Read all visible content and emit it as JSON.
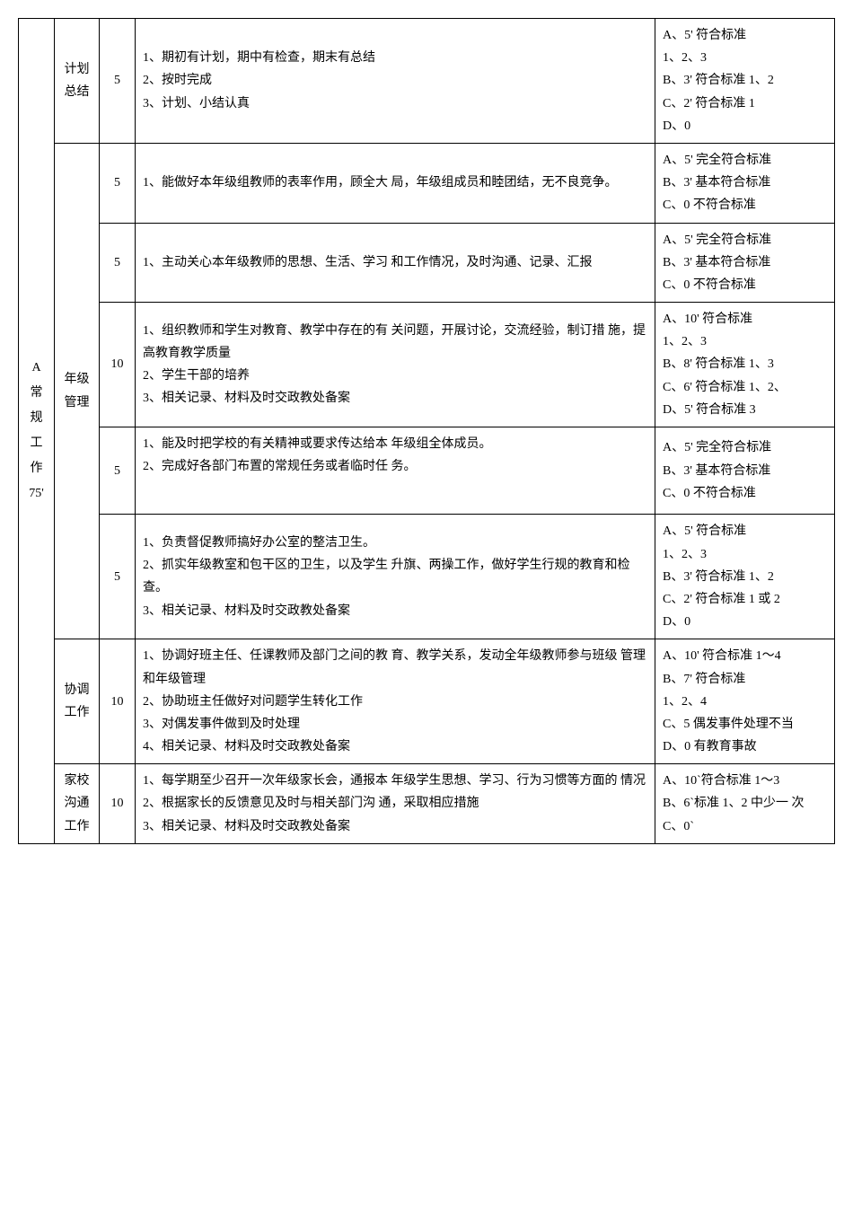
{
  "colors": {
    "border": "#000000",
    "background": "#ffffff",
    "text": "#000000"
  },
  "typography": {
    "font_family": "SimSun",
    "font_size": 14,
    "line_height": 1.8
  },
  "table": {
    "column_widths": {
      "category": 40,
      "subcategory": 50,
      "score": 40,
      "criteria": 200
    },
    "rows": [
      {
        "category": "A 常 规 工 作 75'",
        "sub": "计划 总结",
        "score": "5",
        "content": "1、期初有计划，期中有检查，期末有总结\n2、按时完成\n3、计划、小结认真",
        "criteria": "A、5' 符合标准\n1、2、3\nB、3' 符合标准 1、2\nC、2' 符合标准 1\nD、0"
      },
      {
        "sub": "年级 管理",
        "score": "5",
        "content": "1、能做好本年级组教师的表率作用，顾全大 局，年级组成员和睦团结，无不良竞争。",
        "criteria": "A、5' 完全符合标准\nB、3' 基本符合标准\nC、0 不符合标准"
      },
      {
        "score": "5",
        "content": "1、主动关心本年级教师的思想、生活、学习 和工作情况，及时沟通、记录、汇报",
        "criteria": "A、5' 完全符合标准\nB、3' 基本符合标准\nC、0 不符合标准"
      },
      {
        "score": "10",
        "content": "1、组织教师和学生对教育、教学中存在的有 关问题，开展讨论，交流经验，制订措 施，提高教育教学质量\n2、学生干部的培养\n3、相关记录、材料及时交政教处备案",
        "criteria": "A、10' 符合标准\n1、2、3\nB、8' 符合标准 1、3\nC、6' 符合标准 1、2、\nD、5' 符合标准 3"
      },
      {
        "score": "5",
        "content": "1、能及时把学校的有关精神或要求传达给本 年级组全体成员。\n2、完成好各部门布置的常规任务或者临时任 务。",
        "criteria": "A、5' 完全符合标准\nB、3' 基本符合标准\nC、0 不符合标准"
      },
      {
        "score": "5",
        "content": "1、负责督促教师搞好办公室的整洁卫生。\n2、抓实年级教室和包干区的卫生，以及学生 升旗、两操工作，做好学生行规的教育和检 查。\n3、相关记录、材料及时交政教处备案",
        "criteria": "A、5' 符合标准\n1、2、3\nB、3' 符合标准 1、2\nC、2' 符合标准 1 或 2\nD、0"
      },
      {
        "sub": "协调 工作",
        "score": "10",
        "content": "1、协调好班主任、任课教师及部门之间的教 育、教学关系，发动全年级教师参与班级 管理和年级管理\n2、协助班主任做好对问题学生转化工作\n3、对偶发事件做到及时处理\n4、相关记录、材料及时交政教处备案",
        "criteria": "A、10' 符合标准 1～4\nB、7' 符合标准\n1、2、4\nC、5 偶发事件处理不当\nD、0 有教育事故"
      },
      {
        "sub": "家校 沟通 工作",
        "score": "10",
        "content": "1、每学期至少召开一次年级家长会，通报本 年级学生思想、学习、行为习惯等方面的 情况\n2、根据家长的反馈意见及时与相关部门沟 通，采取相应措施\n3、相关记录、材料及时交政教处备案",
        "criteria": "A、10`符合标准 1～3\nB、6`标准 1、2 中少一 次\nC、0`"
      }
    ]
  }
}
